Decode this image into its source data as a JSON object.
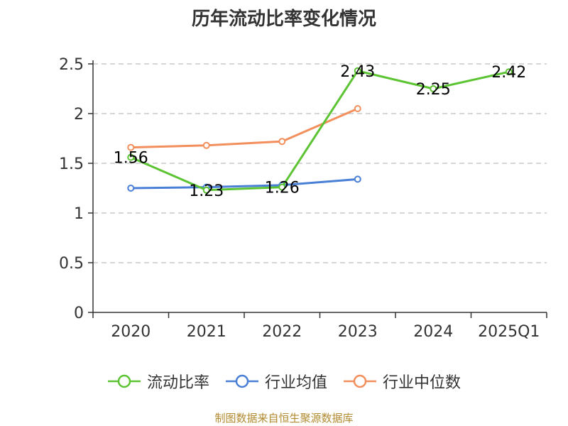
{
  "chart_data": {
    "type": "line",
    "title": "历年流动比率变化情况",
    "categories": [
      "2020",
      "2021",
      "2022",
      "2023",
      "2024",
      "2025Q1"
    ],
    "series": [
      {
        "name": "流动比率",
        "color": "#5cc433",
        "values": [
          1.56,
          1.23,
          1.26,
          2.43,
          2.25,
          2.42
        ],
        "data_labels": [
          "1.56",
          "1.23",
          "1.26",
          "2.43",
          "2.25",
          "2.42"
        ]
      },
      {
        "name": "行业均值",
        "color": "#4a7fd6",
        "values": [
          1.25,
          1.26,
          1.28,
          1.34,
          null,
          null
        ]
      },
      {
        "name": "行业中位数",
        "color": "#f28f5c",
        "values": [
          1.66,
          1.68,
          1.72,
          2.05,
          null,
          null
        ]
      }
    ],
    "y_ticks": [
      "0",
      "0.5",
      "1",
      "1.5",
      "2",
      "2.5"
    ],
    "ylim": [
      0,
      2.5
    ],
    "grid": true,
    "legend_position": "bottom"
  },
  "source_note": "制图数据来自恒生聚源数据库"
}
